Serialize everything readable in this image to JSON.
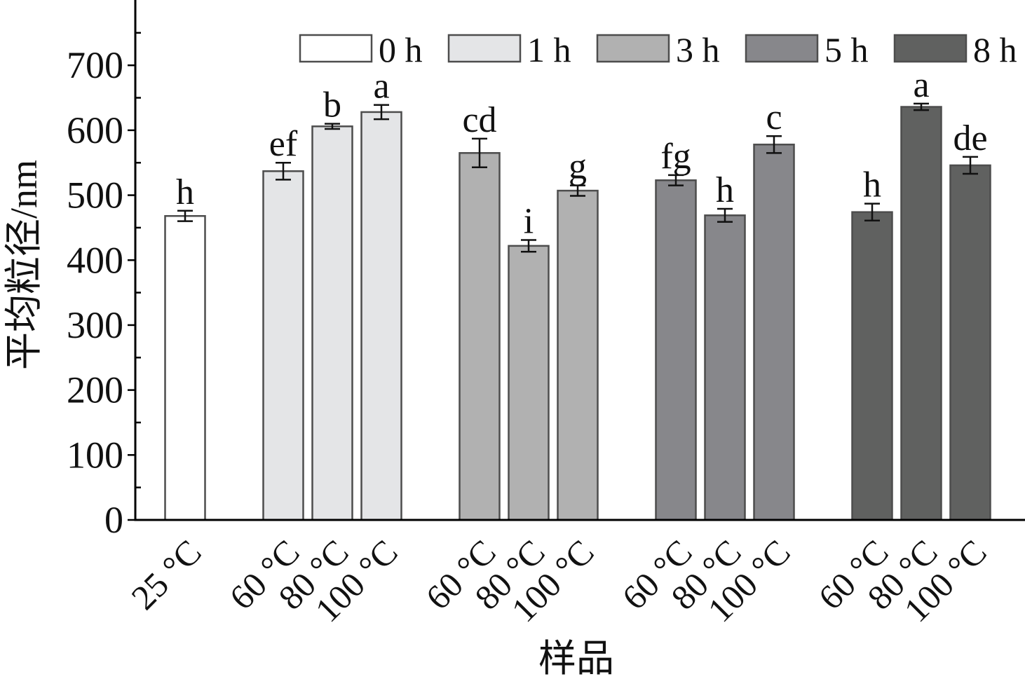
{
  "chart_data": {
    "type": "bar",
    "xlabel": "样品",
    "ylabel": "平均粒径/nm",
    "ylim": [
      0,
      800
    ],
    "yticks": [
      0,
      100,
      200,
      300,
      400,
      500,
      600,
      700
    ],
    "yminor_ticks": [
      50,
      150,
      250,
      350,
      450,
      550,
      650,
      750
    ],
    "grid": false,
    "legend": "top",
    "bar_edge_color": "#4d4d4d",
    "errorbar_color": "#111111",
    "series": [
      {
        "name": "0 h",
        "color": "#ffffff",
        "categories": [
          "25 °C"
        ],
        "values": [
          468
        ],
        "errors": [
          8
        ],
        "letters": [
          "h"
        ]
      },
      {
        "name": "1 h",
        "color": "#e4e5e7",
        "categories": [
          "60 °C",
          "80 °C",
          "100 °C"
        ],
        "values": [
          537,
          606,
          628
        ],
        "errors": [
          13,
          4,
          11
        ],
        "letters": [
          "ef",
          "b",
          "a"
        ]
      },
      {
        "name": "3 h",
        "color": "#b1b1b1",
        "categories": [
          "60 °C",
          "80 °C",
          "100 °C"
        ],
        "values": [
          565,
          422,
          507
        ],
        "errors": [
          22,
          9,
          8
        ],
        "letters": [
          "cd",
          "i",
          "g"
        ]
      },
      {
        "name": "5 h",
        "color": "#87878b",
        "categories": [
          "60 °C",
          "80 °C",
          "100 °C"
        ],
        "values": [
          523,
          469,
          578
        ],
        "errors": [
          8,
          10,
          13
        ],
        "letters": [
          "fg",
          "h",
          "c"
        ]
      },
      {
        "name": "8 h",
        "color": "#606160",
        "categories": [
          "60 °C",
          "80 °C",
          "100 °C"
        ],
        "values": [
          474,
          636,
          546
        ],
        "errors": [
          13,
          5,
          13
        ],
        "letters": [
          "h",
          "a",
          "de"
        ]
      }
    ]
  }
}
